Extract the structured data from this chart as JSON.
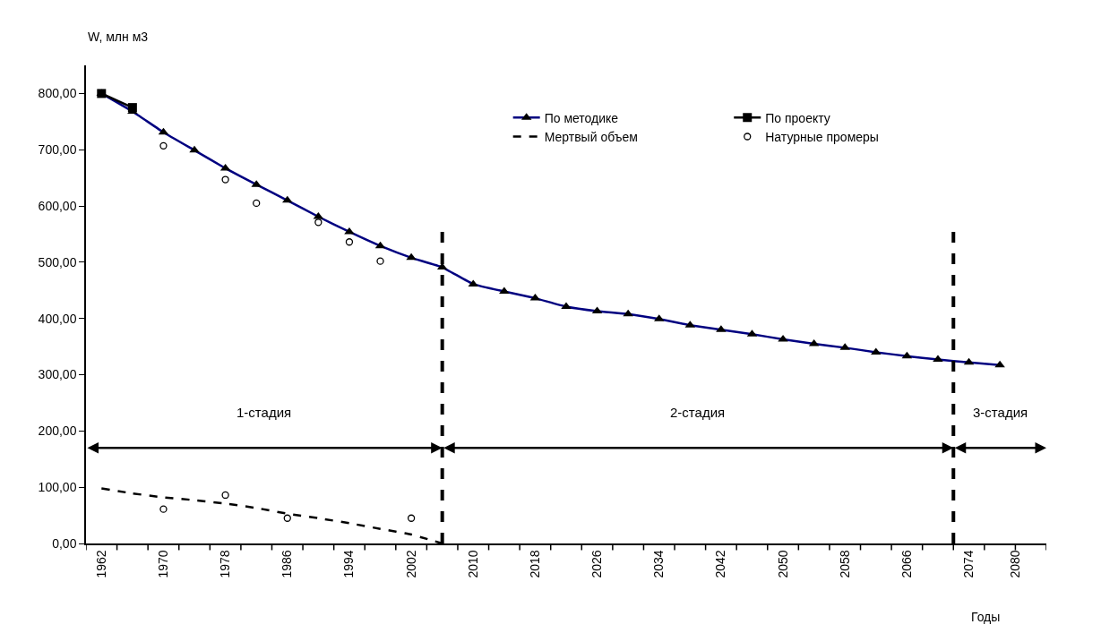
{
  "chart_data": {
    "type": "line",
    "ylabel": "W, млн м3",
    "xlabel": "Годы",
    "xlim": [
      1960,
      2084
    ],
    "xticks": [
      1962,
      1970,
      1978,
      1986,
      1994,
      2002,
      2010,
      2018,
      2026,
      2034,
      2042,
      2050,
      2058,
      2066,
      2074,
      2080,
      {
        "value": 1960,
        "label": null
      },
      {
        "value": 1964,
        "label": null
      },
      {
        "value": 1968,
        "label": null
      },
      {
        "value": 1972,
        "label": null
      },
      {
        "value": 1976,
        "label": null
      },
      {
        "value": 1980,
        "label": null
      },
      {
        "value": 1984,
        "label": null
      },
      {
        "value": 1988,
        "label": null
      },
      {
        "value": 1992,
        "label": null
      },
      {
        "value": 1996,
        "label": null
      },
      {
        "value": 2000,
        "label": null
      },
      {
        "value": 2004,
        "label": null
      },
      {
        "value": 2008,
        "label": null
      },
      {
        "value": 2012,
        "label": null
      },
      {
        "value": 2016,
        "label": null
      },
      {
        "value": 2020,
        "label": null
      },
      {
        "value": 2024,
        "label": null
      },
      {
        "value": 2028,
        "label": null
      },
      {
        "value": 2032,
        "label": null
      },
      {
        "value": 2036,
        "label": null
      },
      {
        "value": 2040,
        "label": null
      },
      {
        "value": 2044,
        "label": null
      },
      {
        "value": 2048,
        "label": null
      },
      {
        "value": 2052,
        "label": null
      },
      {
        "value": 2056,
        "label": null
      },
      {
        "value": 2060,
        "label": null
      },
      {
        "value": 2064,
        "label": null
      },
      {
        "value": 2068,
        "label": null
      },
      {
        "value": 2072,
        "label": null
      },
      {
        "value": 2076,
        "label": null
      },
      {
        "value": 2080,
        "label": null
      },
      {
        "value": 2084,
        "label": null
      }
    ],
    "ylim": [
      0,
      850
    ],
    "yticks": [
      {
        "value": 0,
        "label": "0,00"
      },
      {
        "value": 100,
        "label": "100,00"
      },
      {
        "value": 200,
        "label": "200,00"
      },
      {
        "value": 300,
        "label": "300,00"
      },
      {
        "value": 400,
        "label": "400,00"
      },
      {
        "value": 500,
        "label": "500,00"
      },
      {
        "value": 600,
        "label": "600,00"
      },
      {
        "value": 700,
        "label": "700,00"
      },
      {
        "value": 800,
        "label": "800,00"
      }
    ],
    "legend": "top right",
    "series": [
      {
        "name": "По методике",
        "color": "#000080",
        "marker": "triangle",
        "line_style": "solid",
        "x": [
          1962,
          1966,
          1970,
          1974,
          1978,
          1982,
          1986,
          1990,
          1994,
          1998,
          2002,
          2006,
          2010,
          2014,
          2018,
          2022,
          2026,
          2030,
          2034,
          2038,
          2042,
          2046,
          2050,
          2054,
          2058,
          2062,
          2066,
          2070,
          2074,
          2078
        ],
        "values": [
          800,
          768,
          731,
          699,
          667,
          638,
          610,
          581,
          554,
          529,
          508,
          491,
          461,
          448,
          436,
          421,
          413,
          408,
          399,
          388,
          380,
          372,
          363,
          355,
          348,
          340,
          333,
          327,
          322,
          317
        ]
      },
      {
        "name": "По проекту",
        "color": "#000000",
        "marker": "square",
        "line_style": "solid",
        "x": [
          1962,
          1966
        ],
        "values": [
          800,
          775
        ]
      },
      {
        "name": "Мертвый объем",
        "color": "#000000",
        "marker": "none",
        "line_style": "dashed",
        "x": [
          1962,
          1966,
          1970,
          1974,
          1978,
          1982,
          1986,
          1990,
          1994,
          1998,
          2002,
          2006
        ],
        "values": [
          98,
          89,
          82,
          77,
          71,
          63,
          53,
          45,
          36,
          26,
          16,
          0
        ]
      },
      {
        "name": "Натурные промеры",
        "type": "scatter",
        "color": "#000000",
        "marker": "circle",
        "x": [
          1970,
          1970,
          1978,
          1978,
          1982,
          1986,
          1990,
          1994,
          1998,
          2002
        ],
        "values": [
          707,
          61,
          647,
          86,
          605,
          45,
          571,
          536,
          502,
          45
        ]
      }
    ],
    "ref_lines": [
      {
        "axis": "x",
        "value": 2006,
        "color": "#000000",
        "line_style": "dashed"
      },
      {
        "axis": "x",
        "value": 2072,
        "color": "#000000",
        "line_style": "dashed"
      }
    ],
    "annotations": [
      "1-стадия",
      "2-стадия",
      "3-стадия"
    ]
  }
}
